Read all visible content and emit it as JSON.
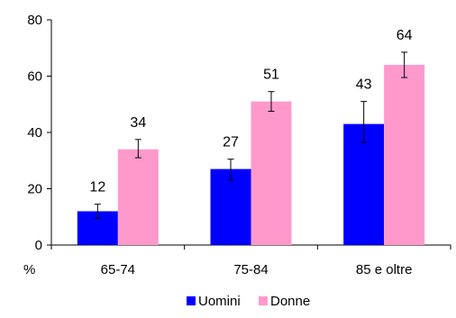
{
  "chart_data": {
    "type": "bar",
    "y_unit_label": "%",
    "categories": [
      "65-74",
      "75-84",
      "85 e oltre"
    ],
    "ylim": [
      0,
      80
    ],
    "yticks": [
      0,
      20,
      40,
      60,
      80
    ],
    "grid": false,
    "legend_position": "bottom",
    "series": [
      {
        "name": "Uomini",
        "color": "#0000ff",
        "values": [
          12,
          27,
          43
        ],
        "value_labels": [
          "12",
          "27",
          "43"
        ],
        "error_low": [
          9.5,
          23,
          36.5
        ],
        "error_high": [
          14.5,
          30.5,
          51
        ]
      },
      {
        "name": "Donne",
        "color": "#ff99cc",
        "values": [
          34,
          51,
          64
        ],
        "value_labels": [
          "34",
          "51",
          "64"
        ],
        "error_low": [
          31,
          47.5,
          59.5
        ],
        "error_high": [
          37.5,
          54.5,
          68.5
        ]
      }
    ]
  }
}
